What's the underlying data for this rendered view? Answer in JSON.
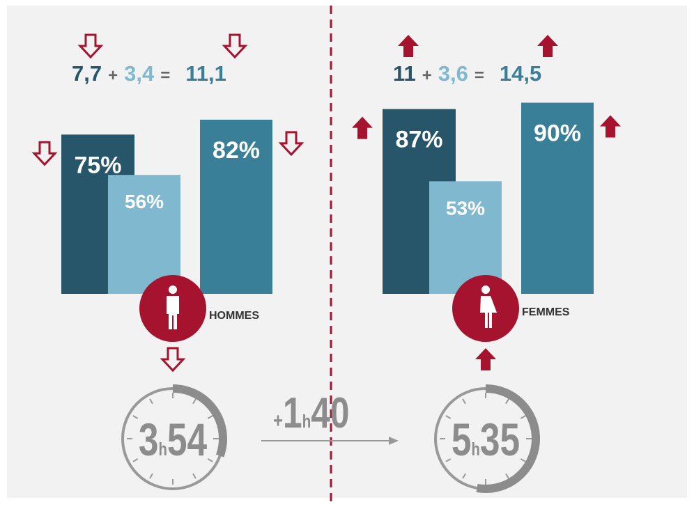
{
  "panels": [
    {
      "label": "HOMMES",
      "trend": "down",
      "equation": {
        "a": "7,7",
        "plus": "+",
        "b": "3,4",
        "eq": "=",
        "total": "11,1"
      },
      "values": [
        75,
        56,
        82
      ],
      "value_labels": [
        "75%",
        "56%",
        "82%"
      ],
      "time": {
        "hours": "3",
        "unit": "h",
        "minutes": "54"
      }
    },
    {
      "label": "FEMMES",
      "trend": "up",
      "equation": {
        "a": "11",
        "plus": "+",
        "b": "3,6",
        "eq": "=",
        "total": "14,5"
      },
      "values": [
        87,
        53,
        90
      ],
      "value_labels": [
        "87%",
        "53%",
        "90%"
      ],
      "time": {
        "hours": "5",
        "unit": "h",
        "minutes": "35"
      }
    }
  ],
  "colors": [
    "#27566a",
    "#7fb8cf",
    "#3a7f98"
  ],
  "difference": {
    "sign": "+",
    "hours": "1",
    "unit": "h",
    "minutes": "40"
  }
}
